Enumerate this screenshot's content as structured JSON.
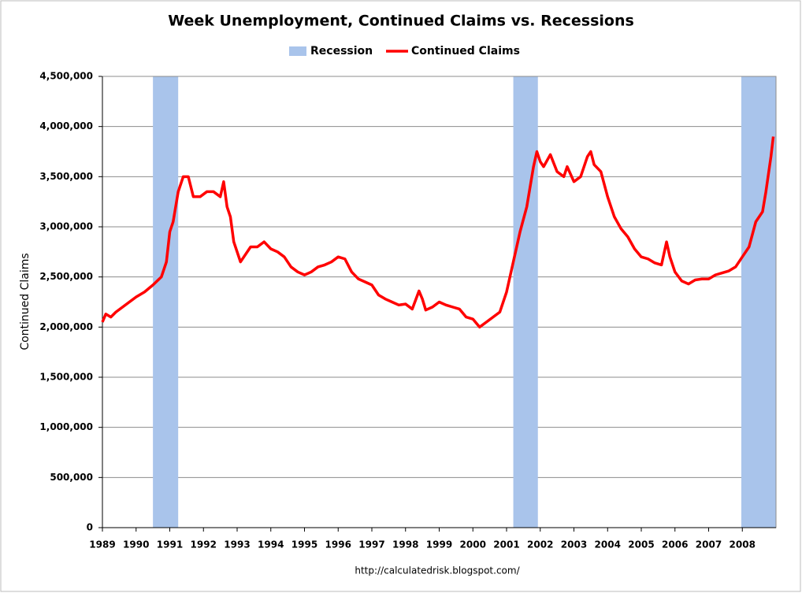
{
  "chart_data": {
    "type": "line",
    "title": "Week Unemployment, Continued Claims vs. Recessions",
    "y_label": "Continued Claims",
    "source": "http://calculatedrisk.blogspot.com/",
    "recessions": {
      "name": "Recession",
      "color": "#a9c4eb",
      "spans": [
        [
          1990.5,
          1991.25
        ],
        [
          2001.2,
          2001.93
        ],
        [
          2007.97,
          2009
        ]
      ]
    },
    "x": [
      1989.0,
      1989.1,
      1989.25,
      1989.4,
      1989.6,
      1989.8,
      1990.0,
      1990.25,
      1990.5,
      1990.75,
      1990.9,
      1991.0,
      1991.1,
      1991.25,
      1991.4,
      1991.55,
      1991.7,
      1991.9,
      1992.1,
      1992.3,
      1992.5,
      1992.6,
      1992.7,
      1992.8,
      1992.9,
      1993.1,
      1993.2,
      1993.4,
      1993.6,
      1993.8,
      1994.0,
      1994.2,
      1994.4,
      1994.6,
      1994.8,
      1995.0,
      1995.2,
      1995.4,
      1995.6,
      1995.8,
      1996.0,
      1996.2,
      1996.4,
      1996.6,
      1996.8,
      1997.0,
      1997.2,
      1997.4,
      1997.6,
      1997.8,
      1998.0,
      1998.2,
      1998.4,
      1998.5,
      1998.6,
      1998.8,
      1999.0,
      1999.2,
      1999.4,
      1999.6,
      1999.8,
      2000.0,
      2000.2,
      2000.4,
      2000.6,
      2000.8,
      2001.0,
      2001.1,
      2001.2,
      2001.4,
      2001.6,
      2001.8,
      2001.9,
      2002.0,
      2002.1,
      2002.3,
      2002.5,
      2002.7,
      2002.8,
      2003.0,
      2003.2,
      2003.4,
      2003.5,
      2003.6,
      2003.8,
      2004.0,
      2004.2,
      2004.4,
      2004.6,
      2004.8,
      2005.0,
      2005.2,
      2005.4,
      2005.6,
      2005.75,
      2005.85,
      2006.0,
      2006.2,
      2006.4,
      2006.6,
      2006.8,
      2007.0,
      2007.2,
      2007.4,
      2007.6,
      2007.8,
      2008.0,
      2008.2,
      2008.4,
      2008.6,
      2008.7,
      2008.85,
      2008.92
    ],
    "series": [
      {
        "name": "Continued Claims",
        "color": "#ff0000",
        "values": [
          2050000,
          2130000,
          2100000,
          2150000,
          2200000,
          2250000,
          2300000,
          2350000,
          2420000,
          2500000,
          2650000,
          2950000,
          3050000,
          3350000,
          3500000,
          3500000,
          3300000,
          3300000,
          3350000,
          3350000,
          3300000,
          3450000,
          3200000,
          3100000,
          2850000,
          2650000,
          2700000,
          2800000,
          2800000,
          2850000,
          2780000,
          2750000,
          2700000,
          2600000,
          2550000,
          2520000,
          2550000,
          2600000,
          2620000,
          2650000,
          2700000,
          2680000,
          2550000,
          2480000,
          2450000,
          2420000,
          2320000,
          2280000,
          2250000,
          2220000,
          2230000,
          2180000,
          2360000,
          2280000,
          2170000,
          2200000,
          2250000,
          2220000,
          2200000,
          2180000,
          2100000,
          2080000,
          2000000,
          2050000,
          2100000,
          2150000,
          2350000,
          2500000,
          2650000,
          2950000,
          3200000,
          3600000,
          3750000,
          3650000,
          3600000,
          3720000,
          3550000,
          3500000,
          3600000,
          3450000,
          3500000,
          3700000,
          3750000,
          3620000,
          3550000,
          3300000,
          3100000,
          2980000,
          2900000,
          2780000,
          2700000,
          2680000,
          2640000,
          2620000,
          2850000,
          2700000,
          2550000,
          2460000,
          2430000,
          2470000,
          2480000,
          2480000,
          2520000,
          2540000,
          2560000,
          2600000,
          2700000,
          2800000,
          3050000,
          3150000,
          3350000,
          3700000,
          3900000
        ]
      }
    ],
    "xlim": [
      1989,
      2009
    ],
    "xticks": [
      1989,
      1990,
      1991,
      1992,
      1993,
      1994,
      1995,
      1996,
      1997,
      1998,
      1999,
      2000,
      2001,
      2002,
      2003,
      2004,
      2005,
      2006,
      2007,
      2008
    ],
    "ylim": [
      0,
      4500000
    ],
    "yticks": [
      0,
      {
        "value": 500000,
        "label": "500,000"
      },
      {
        "value": 1000000,
        "label": "1,000,000"
      },
      {
        "value": 1500000,
        "label": "1,500,000"
      },
      {
        "value": 2000000,
        "label": "2,000,000"
      },
      {
        "value": 2500000,
        "label": "2,500,000"
      },
      {
        "value": 3000000,
        "label": "3,000,000"
      },
      {
        "value": 3500000,
        "label": "3,500,000"
      },
      {
        "value": 4000000,
        "label": "4,000,000"
      },
      {
        "value": 4500000,
        "label": "4,500,000"
      }
    ],
    "grid": true
  }
}
